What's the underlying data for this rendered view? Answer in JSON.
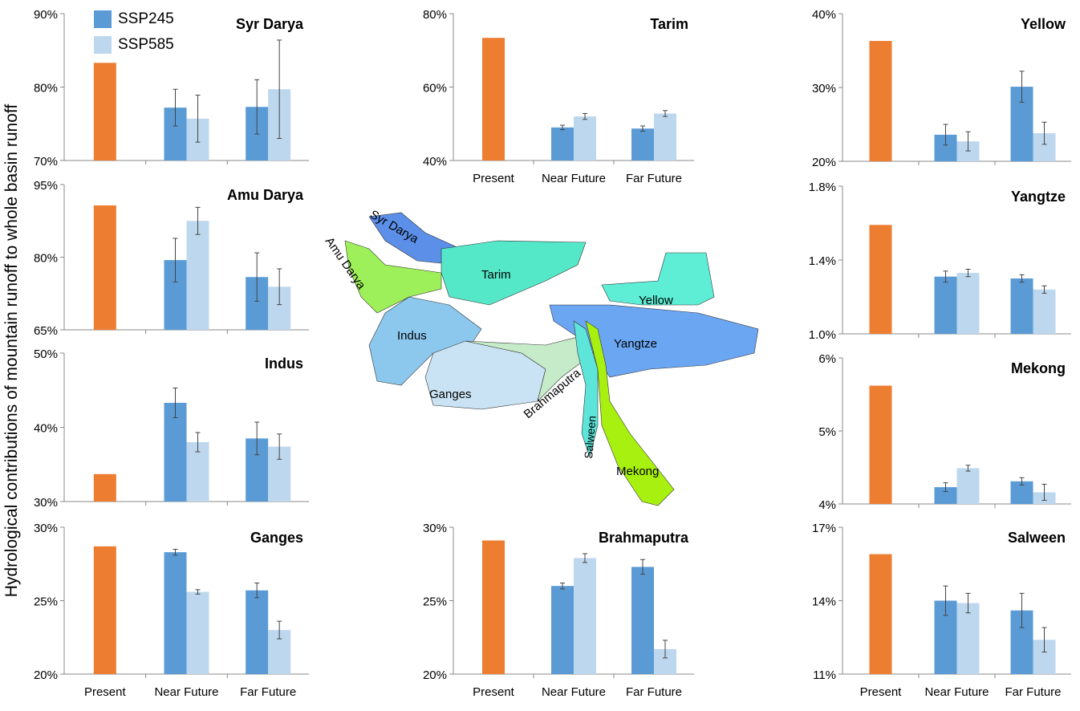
{
  "y_axis_title": "Hydrological contributions of mountain runoff to whole basin runoff",
  "legend": [
    {
      "label": "SSP245",
      "color": "#5B9BD5"
    },
    {
      "label": "SSP585",
      "color": "#BDD7EE"
    }
  ],
  "colors": {
    "present": "#ED7D31",
    "ssp245": "#5B9BD5",
    "ssp585": "#BDD7EE",
    "axis": "#888888"
  },
  "map_labels": [
    "Syr Darya",
    "Amu Darya",
    "Tarim",
    "Indus",
    "Ganges",
    "Brahmaputra",
    "Salween",
    "Yangtze",
    "Yellow",
    "Mekong"
  ],
  "chart_data": [
    {
      "type": "bar",
      "title": "Syr Darya",
      "categories": [
        "Present",
        "Near Future",
        "Far Future"
      ],
      "ylim": [
        70,
        90
      ],
      "ticks": [
        "70%",
        "80%",
        "90%"
      ],
      "present": 83.3,
      "ssp245": [
        77.2,
        77.3
      ],
      "ssp585": [
        75.7,
        79.7
      ],
      "err245": [
        2.5,
        3.7
      ],
      "err585": [
        3.2,
        6.7
      ],
      "show_xlabels": false
    },
    {
      "type": "bar",
      "title": "Amu Darya",
      "categories": [
        "Present",
        "Near Future",
        "Far Future"
      ],
      "ylim": [
        65,
        95
      ],
      "ticks": [
        "65%",
        "80%",
        "95%"
      ],
      "present": 90.7,
      "ssp245": [
        79.4,
        75.9
      ],
      "ssp585": [
        87.5,
        73.9
      ],
      "err245": [
        4.5,
        5.0
      ],
      "err585": [
        2.8,
        3.7
      ],
      "show_xlabels": false
    },
    {
      "type": "bar",
      "title": "Indus",
      "categories": [
        "Present",
        "Near Future",
        "Far Future"
      ],
      "ylim": [
        30,
        50
      ],
      "ticks": [
        "30%",
        "40%",
        "50%"
      ],
      "present": 33.7,
      "ssp245": [
        43.3,
        38.5
      ],
      "ssp585": [
        38.0,
        37.4
      ],
      "err245": [
        2.0,
        2.2
      ],
      "err585": [
        1.3,
        1.7
      ],
      "show_xlabels": false
    },
    {
      "type": "bar",
      "title": "Ganges",
      "categories": [
        "Present",
        "Near Future",
        "Far Future"
      ],
      "ylim": [
        20,
        30
      ],
      "ticks": [
        "20%",
        "25%",
        "30%"
      ],
      "present": 28.7,
      "ssp245": [
        28.3,
        25.7
      ],
      "ssp585": [
        25.6,
        23.0
      ],
      "err245": [
        0.2,
        0.5
      ],
      "err585": [
        0.15,
        0.6
      ],
      "show_xlabels": true
    },
    {
      "type": "bar",
      "title": "Tarim",
      "categories": [
        "Present",
        "Near Future",
        "Far Future"
      ],
      "ylim": [
        40,
        80
      ],
      "ticks": [
        "40%",
        "60%",
        "80%"
      ],
      "present": 73.4,
      "ssp245": [
        49.0,
        48.7
      ],
      "ssp585": [
        52.0,
        52.8
      ],
      "err245": [
        0.6,
        0.7
      ],
      "err585": [
        0.8,
        0.8
      ],
      "show_xlabels": true
    },
    {
      "type": "bar",
      "title": "Brahmaputra",
      "categories": [
        "Present",
        "Near Future",
        "Far Future"
      ],
      "ylim": [
        20,
        30
      ],
      "ticks": [
        "20%",
        "25%",
        "30%"
      ],
      "present": 29.1,
      "ssp245": [
        26.0,
        27.3
      ],
      "ssp585": [
        27.9,
        21.7
      ],
      "err245": [
        0.2,
        0.5
      ],
      "err585": [
        0.3,
        0.6
      ],
      "show_xlabels": true
    },
    {
      "type": "bar",
      "title": "Yellow",
      "categories": [
        "Present",
        "Near Future",
        "Far Future"
      ],
      "ylim": [
        20,
        40
      ],
      "ticks": [
        "20%",
        "30%",
        "40%"
      ],
      "present": 36.3,
      "ssp245": [
        23.6,
        30.1
      ],
      "ssp585": [
        22.7,
        23.8
      ],
      "err245": [
        1.4,
        2.1
      ],
      "err585": [
        1.3,
        1.5
      ],
      "show_xlabels": false
    },
    {
      "type": "bar",
      "title": "Yangtze",
      "categories": [
        "Present",
        "Near Future",
        "Far Future"
      ],
      "ylim": [
        1.0,
        1.8
      ],
      "ticks": [
        "1.0%",
        "1.4%",
        "1.8%"
      ],
      "present": 1.59,
      "ssp245": [
        1.31,
        1.3
      ],
      "ssp585": [
        1.33,
        1.24
      ],
      "err245": [
        0.03,
        0.02
      ],
      "err585": [
        0.02,
        0.02
      ],
      "show_xlabels": false
    },
    {
      "type": "bar",
      "title": "Mekong",
      "categories": [
        "Present",
        "Near Future",
        "Far Future"
      ],
      "ylim": [
        4,
        6
      ],
      "ticks": [
        "4%",
        "5%",
        "6%"
      ],
      "present": 5.62,
      "ssp245": [
        4.23,
        4.31
      ],
      "ssp585": [
        4.49,
        4.16
      ],
      "err245": [
        0.06,
        0.05
      ],
      "err585": [
        0.04,
        0.11
      ],
      "show_xlabels": false
    },
    {
      "type": "bar",
      "title": "Salween",
      "categories": [
        "Present",
        "Near Future",
        "Far Future"
      ],
      "ylim": [
        11,
        17
      ],
      "ticks": [
        "11%",
        "14%",
        "17%"
      ],
      "present": 15.9,
      "ssp245": [
        14.0,
        13.6
      ],
      "ssp585": [
        13.9,
        12.4
      ],
      "err245": [
        0.6,
        0.7
      ],
      "err585": [
        0.4,
        0.5
      ],
      "show_xlabels": true
    }
  ]
}
